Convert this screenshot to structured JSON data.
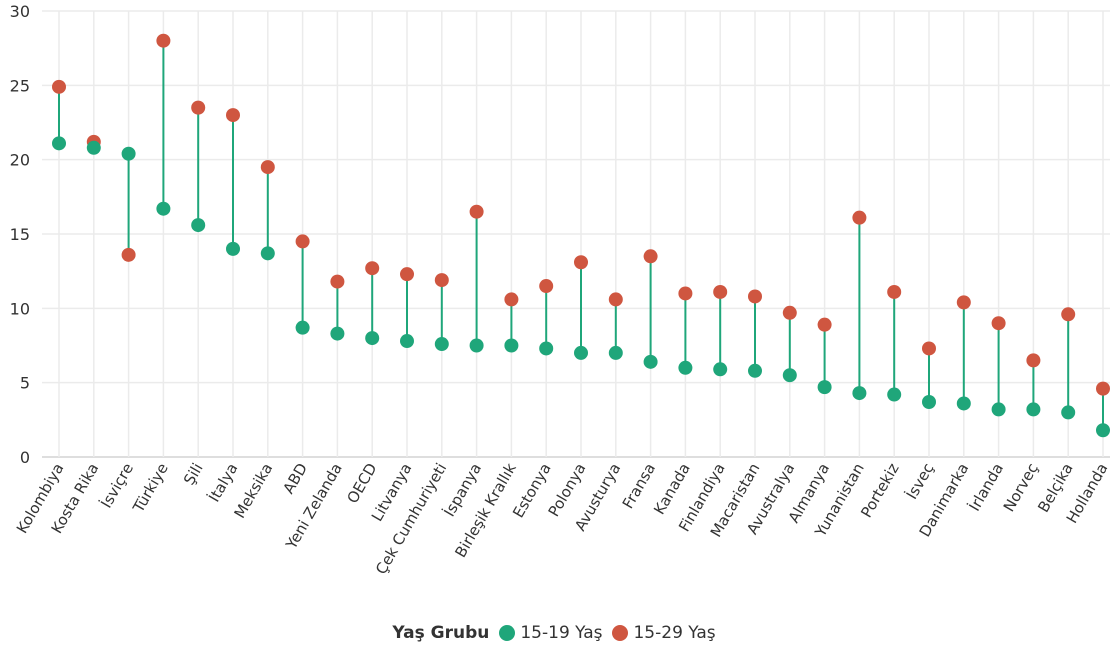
{
  "chart_data": {
    "type": "scatter",
    "subtype": "dumbbell",
    "categories": [
      "Kolombiya",
      "Kosta Rika",
      "İsviçre",
      "Türkiye",
      "Şili",
      "İtalya",
      "Meksika",
      "ABD",
      "Yeni Zelanda",
      "OECD",
      "Litvanya",
      "Çek Cumhuriyeti",
      "İspanya",
      "Birleşik Krallık",
      "Estonya",
      "Polonya",
      "Avusturya",
      "Fransa",
      "Kanada",
      "Finlandiya",
      "Macaristan",
      "Avustralya",
      "Almanya",
      "Yunanistan",
      "Portekiz",
      "İsveç",
      "Danimarka",
      "İrlanda",
      "Norveç",
      "Belçika",
      "Hollanda"
    ],
    "series": [
      {
        "name": "15-19 Yaş",
        "color": "#1fa67a",
        "values": [
          21.1,
          20.8,
          20.4,
          16.7,
          15.6,
          14.0,
          13.7,
          8.7,
          8.3,
          8.0,
          7.8,
          7.6,
          7.5,
          7.5,
          7.3,
          7.0,
          7.0,
          6.4,
          6.0,
          5.9,
          5.8,
          5.5,
          4.7,
          4.3,
          4.2,
          3.7,
          3.6,
          3.2,
          3.2,
          3.0,
          1.8
        ]
      },
      {
        "name": "15-29 Yaş",
        "color": "#cf5640",
        "values": [
          24.9,
          21.2,
          13.6,
          28.0,
          23.5,
          23.0,
          19.5,
          14.5,
          11.8,
          12.7,
          12.3,
          11.9,
          16.5,
          10.6,
          11.5,
          13.1,
          10.6,
          13.5,
          11.0,
          11.1,
          10.8,
          9.7,
          8.9,
          16.1,
          11.1,
          7.3,
          10.4,
          9.0,
          6.5,
          9.6,
          4.6
        ]
      }
    ],
    "ylim": [
      0,
      30
    ],
    "yticks": [
      0,
      5,
      10,
      15,
      20,
      25,
      30
    ],
    "grid": true,
    "legend_title": "Yaş Grubu",
    "legend_position": "bottom-center",
    "connector_color": "#1fa67a"
  }
}
